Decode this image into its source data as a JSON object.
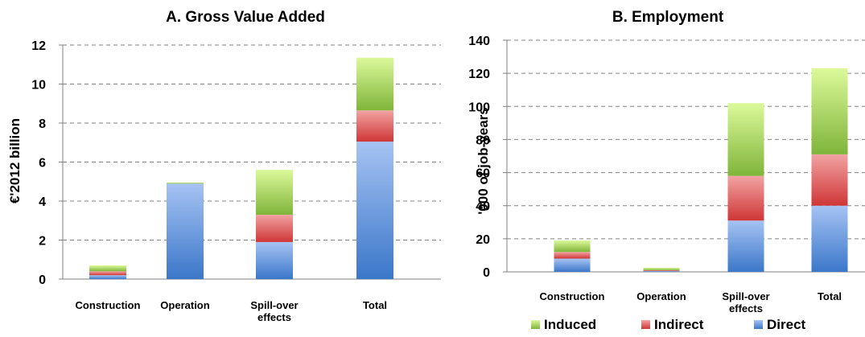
{
  "colors": {
    "direct_top": "#a6c3f3",
    "direct_bottom": "#3b77c9",
    "indirect_top": "#f2a3a3",
    "indirect_bottom": "#cf3636",
    "induced_top": "#dcf99a",
    "induced_bottom": "#7fb53a",
    "grid": "#808080",
    "axis": "#808080",
    "text": "#000000"
  },
  "legend": {
    "induced": "Induced",
    "indirect": "Indirect",
    "direct": "Direct"
  },
  "chart_data": [
    {
      "type": "bar",
      "stacked": true,
      "title": "A. Gross Value Added",
      "ylabel": "€'2012 billion",
      "xlabel": "",
      "ylim": [
        0,
        12
      ],
      "yticks": [
        0,
        2,
        4,
        6,
        8,
        10,
        12
      ],
      "grid": true,
      "categories": [
        [
          "Construction"
        ],
        [
          "Operation"
        ],
        [
          "Spill-over",
          "effects"
        ],
        [
          "Total"
        ]
      ],
      "series": [
        {
          "name": "Direct",
          "values": [
            0.2,
            4.9,
            1.9,
            7.05
          ]
        },
        {
          "name": "Indirect",
          "values": [
            0.2,
            0.0,
            1.4,
            1.6
          ]
        },
        {
          "name": "Induced",
          "values": [
            0.3,
            0.05,
            2.3,
            2.7
          ]
        }
      ]
    },
    {
      "type": "bar",
      "stacked": true,
      "title": "B. Employment",
      "ylabel": "'000 of job-years",
      "xlabel": "",
      "ylim": [
        0,
        140
      ],
      "yticks": [
        0,
        20,
        40,
        60,
        80,
        100,
        120,
        140
      ],
      "grid": true,
      "categories": [
        [
          "Construction"
        ],
        [
          "Operation"
        ],
        [
          "Spill-over",
          "effects"
        ],
        [
          "Total"
        ]
      ],
      "series": [
        {
          "name": "Direct",
          "values": [
            8,
            0.5,
            31,
            40
          ]
        },
        {
          "name": "Indirect",
          "values": [
            4,
            0.5,
            27,
            31
          ]
        },
        {
          "name": "Induced",
          "values": [
            7,
            1.5,
            44,
            52
          ]
        }
      ]
    }
  ]
}
